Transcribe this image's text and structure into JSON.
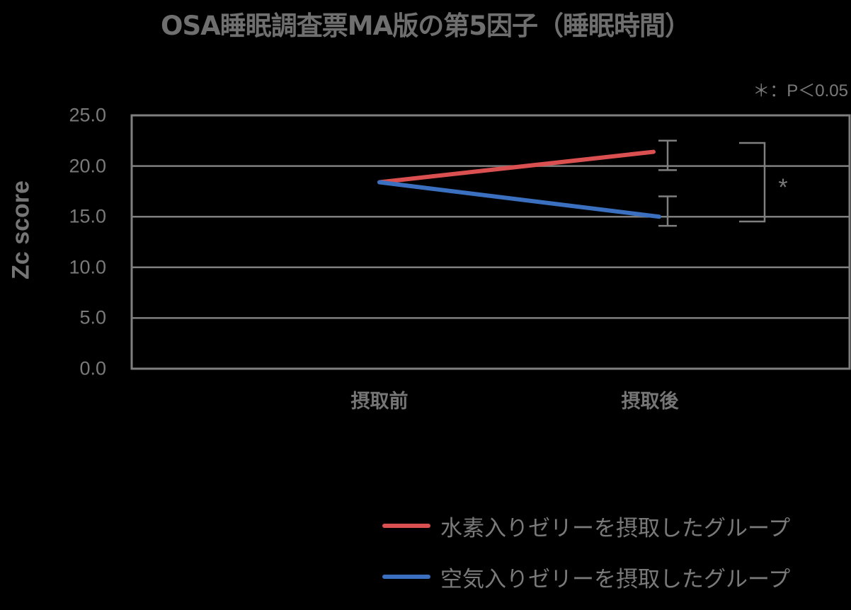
{
  "chart_data": {
    "type": "line",
    "title": "OSA睡眠調査票MA版の第5因子（睡眠時間）",
    "annotation": "＊：P＜0.05",
    "significance_marker": "*",
    "xlabel": "",
    "ylabel": "Zc score",
    "ylim": [
      0,
      25
    ],
    "yticks": [
      "0.0",
      "5.0",
      "10.0",
      "15.0",
      "20.0",
      "25.0"
    ],
    "categories": [
      "摂取前",
      "摂取後"
    ],
    "grid": true,
    "legend_position": "bottom-right",
    "series": [
      {
        "name": "水素入りゼリーを摂取したグループ",
        "color": "#DA4F4F",
        "values": [
          18.4,
          21.4
        ],
        "error": [
          null,
          [
            19.6,
            22.5
          ]
        ]
      },
      {
        "name": "空気入りゼリーを摂取したグループ",
        "color": "#3A70BF",
        "values": [
          18.4,
          15.0
        ],
        "error": [
          null,
          [
            14.1,
            17.0
          ]
        ]
      }
    ]
  },
  "colors": {
    "axis": "#7F7F7F",
    "text": "#7A7A7A",
    "background": "#000000"
  }
}
